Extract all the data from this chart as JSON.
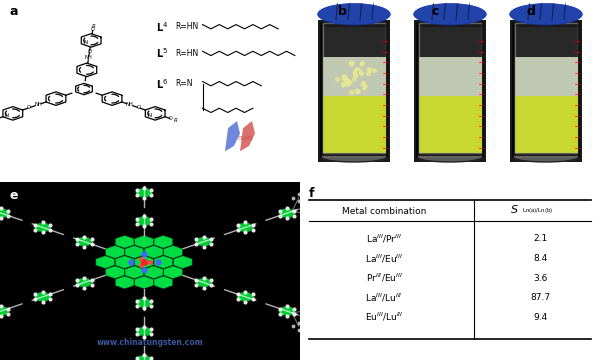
{
  "panel_labels": [
    "a",
    "b",
    "c",
    "d",
    "e",
    "f"
  ],
  "table_rows": [
    [
      "La$^{III}$/Pr$^{III}$",
      "2.1"
    ],
    [
      "La$^{III}$/Eu$^{III}$",
      "8.4"
    ],
    [
      "Pr$^{III}$/Eu$^{III}$",
      "3.6"
    ],
    [
      "La$^{III}$/Lu$^{III}$",
      "87.7"
    ],
    [
      "Eu$^{III}$/Lu$^{III}$",
      "9.4"
    ]
  ],
  "bg_color": "#ffffff",
  "watermark_text": "www.chinatungsten.com",
  "watermark_color": "#4466bb",
  "ctoms_color": "#cc4444",
  "logo_blue": "#3355cc",
  "logo_red": "#cc3333"
}
